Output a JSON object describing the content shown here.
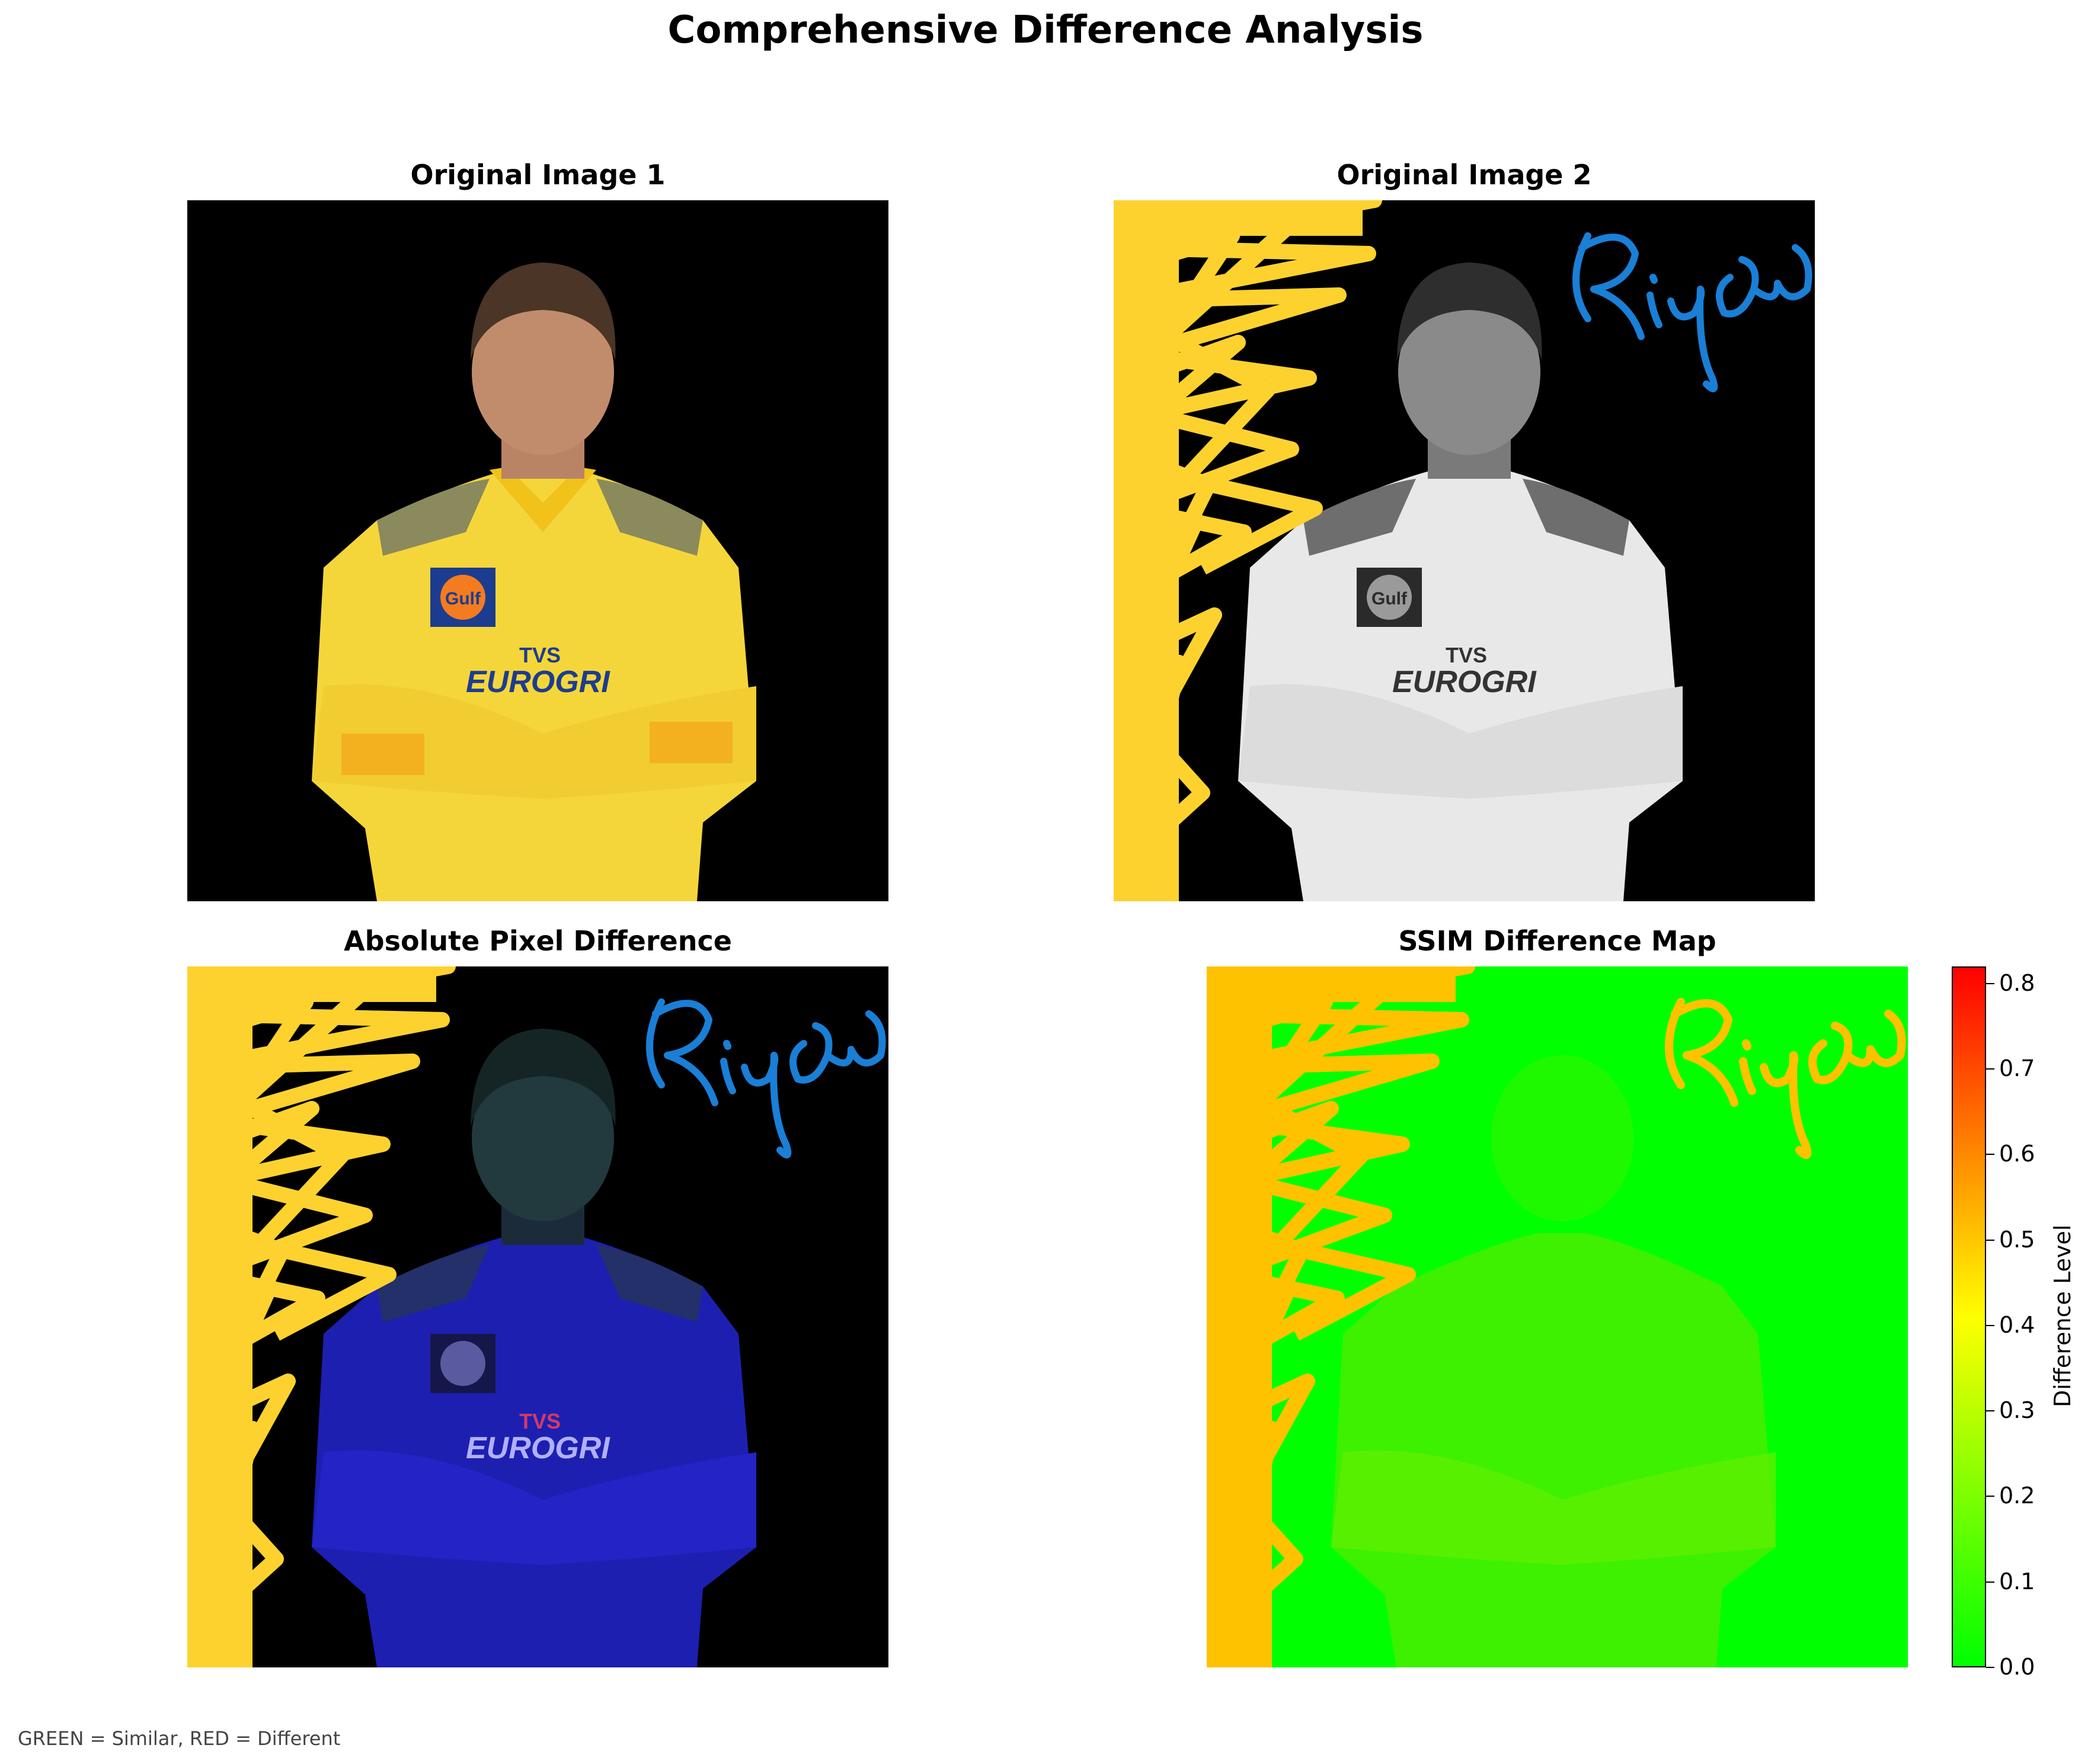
{
  "figure": {
    "title": "Comprehensive Difference Analysis",
    "footnote": "GREEN = Similar, RED = Different"
  },
  "panels": [
    {
      "title": "Original Image 1",
      "kind": "photo-color"
    },
    {
      "title": "Original Image 2",
      "kind": "photo-grayscale-with-scribbles",
      "signature": "Riyas"
    },
    {
      "title": "Absolute Pixel Difference",
      "kind": "difference-image",
      "signature": "Riyas"
    },
    {
      "title": "SSIM Difference Map",
      "kind": "heatmap",
      "signature": "Riyas"
    }
  ],
  "photo_text": {
    "sponsor_line1": "TVS",
    "sponsor_line2": "EUROGRI",
    "badge": "Gulf"
  },
  "chart_data": {
    "type": "heatmap",
    "title": "SSIM Difference Map",
    "colorbar": {
      "label": "Difference Level",
      "range": [
        0.0,
        0.82
      ],
      "ticks": [
        "0.0",
        "0.1",
        "0.2",
        "0.3",
        "0.4",
        "0.5",
        "0.6",
        "0.7",
        "0.8"
      ],
      "colormap": [
        "#00ff00",
        "#ffff00",
        "#ff0000"
      ]
    }
  },
  "colors": {
    "jersey_yellow": "#f5d63a",
    "scribble_yellow": "#fdd22f",
    "signature_blue": "#1a7fd6",
    "diff_blue": "#1d1fb0",
    "heat_green": "#00ff00",
    "heat_orange": "#ffc200",
    "background": "#000000"
  }
}
